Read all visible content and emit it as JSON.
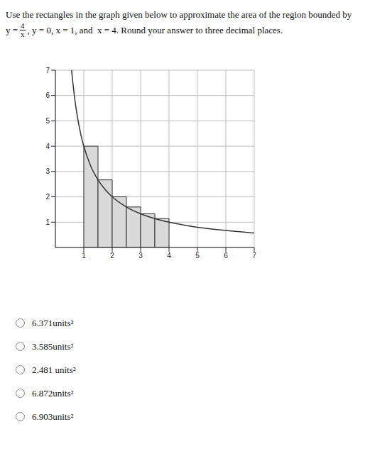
{
  "question": {
    "intro": "Use the rectangles in the graph given below to approximate the area of the region bounded by",
    "lhs": "y =",
    "numerator": "4",
    "denominator": "x",
    "rest": ", y = 0, x = 1, and  x = 4. Round your answer to three decimal places."
  },
  "chart_data": {
    "type": "line",
    "x": [
      0.57,
      0.6,
      0.7,
      0.8,
      0.9,
      1,
      1.25,
      1.5,
      1.75,
      2,
      2.5,
      3,
      3.5,
      4,
      4.5,
      5,
      5.5,
      6,
      6.5,
      7
    ],
    "values": [
      7,
      6.67,
      5.71,
      5,
      4.44,
      4,
      3.2,
      2.67,
      2.29,
      2,
      1.6,
      1.33,
      1.14,
      1,
      0.89,
      0.8,
      0.73,
      0.67,
      0.62,
      0.57
    ],
    "color": "#333333",
    "xlim": [
      0,
      7
    ],
    "ylim": [
      0,
      7
    ],
    "xticks": [
      1,
      2,
      3,
      4,
      5,
      6,
      7
    ],
    "yticks": [
      1,
      2,
      3,
      4,
      5,
      6,
      7
    ],
    "grid": true,
    "rectangles": {
      "left": [
        1,
        1.5,
        2,
        2.5,
        3,
        3.5
      ],
      "right": [
        1.5,
        2,
        2.5,
        3,
        3.5,
        4
      ],
      "heights": [
        4,
        2.67,
        2,
        1.6,
        1.33,
        1.14
      ],
      "color": "#d9d9d9"
    }
  },
  "options": [
    "6.371units²",
    "3.585units²",
    "2.481 units²",
    "6.872units²",
    "6.903units²"
  ]
}
